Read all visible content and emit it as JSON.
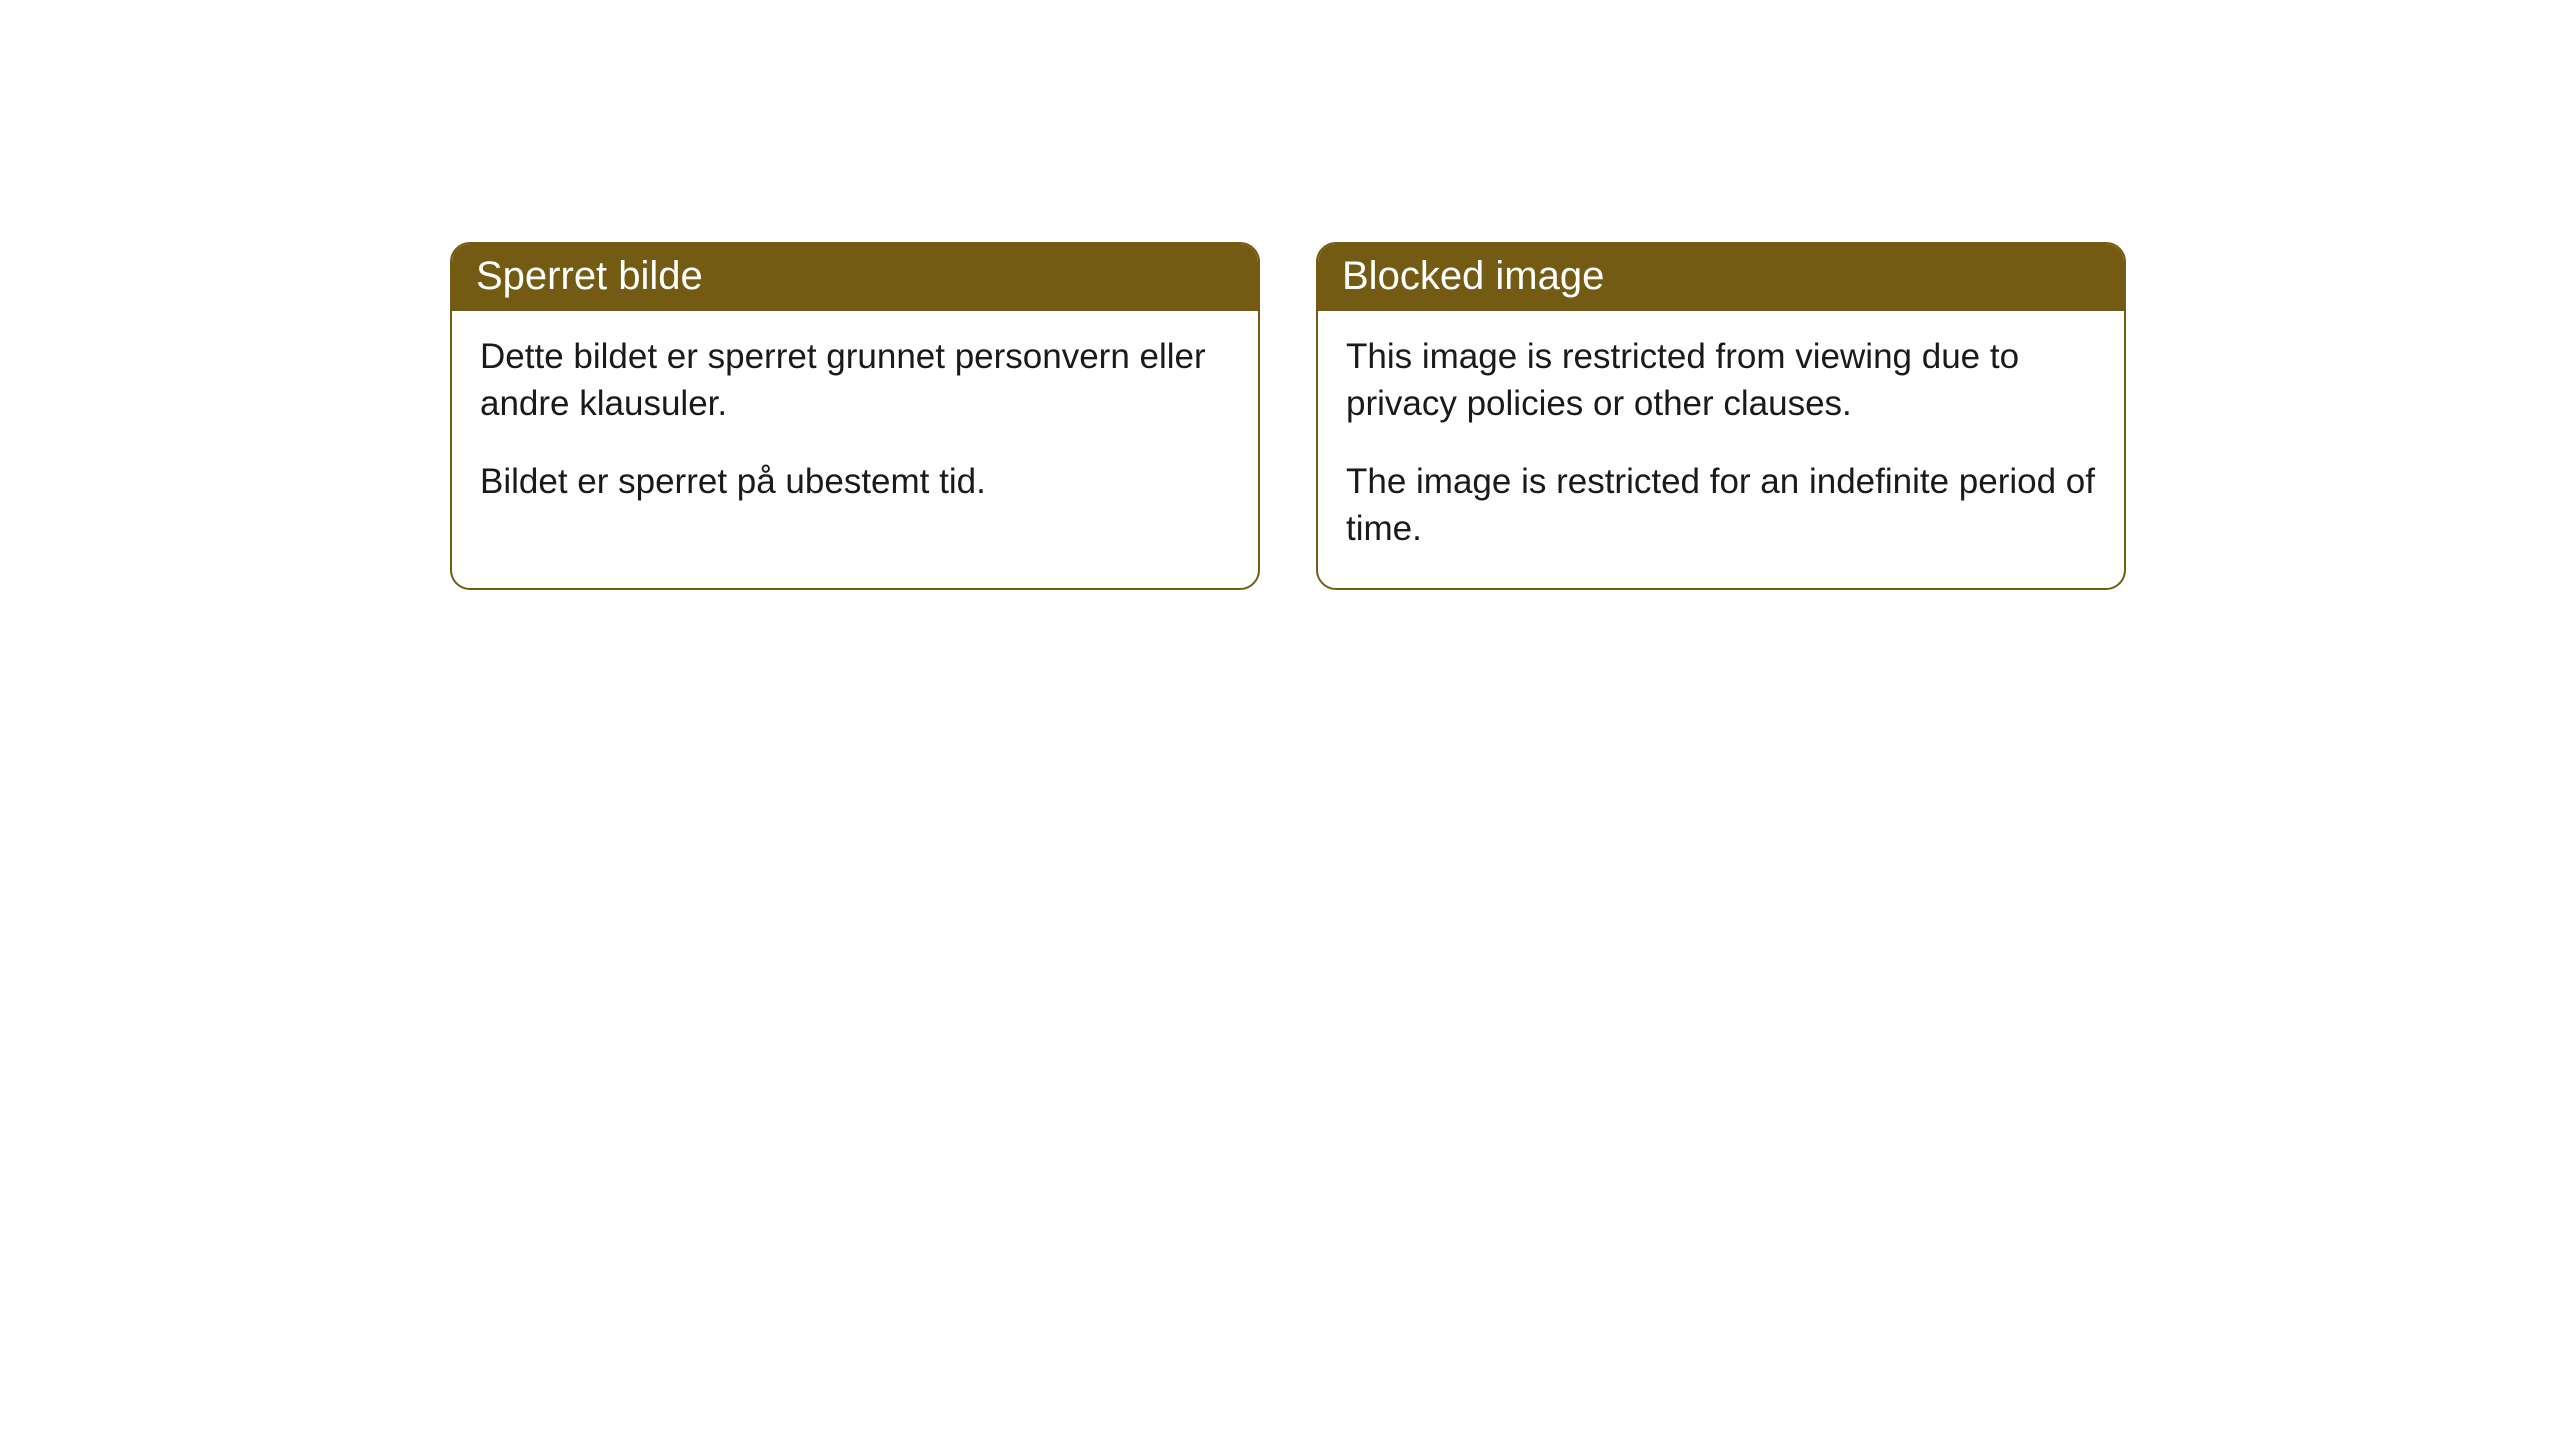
{
  "cards": [
    {
      "title": "Sperret bilde",
      "para1": "Dette bildet er sperret grunnet personvern eller andre klausuler.",
      "para2": "Bildet er sperret på ubestemt tid."
    },
    {
      "title": "Blocked image",
      "para1": "This image is restricted from viewing due to privacy policies or other clauses.",
      "para2": "The image is restricted for an indefinite period of time."
    }
  ],
  "style": {
    "header_bg": "#745b13",
    "header_text_color": "#ffffff",
    "border_color": "#745b13",
    "body_text_color": "#1a1a1a",
    "background_color": "#ffffff",
    "border_radius": 20,
    "title_fontsize": 40,
    "body_fontsize": 35
  }
}
